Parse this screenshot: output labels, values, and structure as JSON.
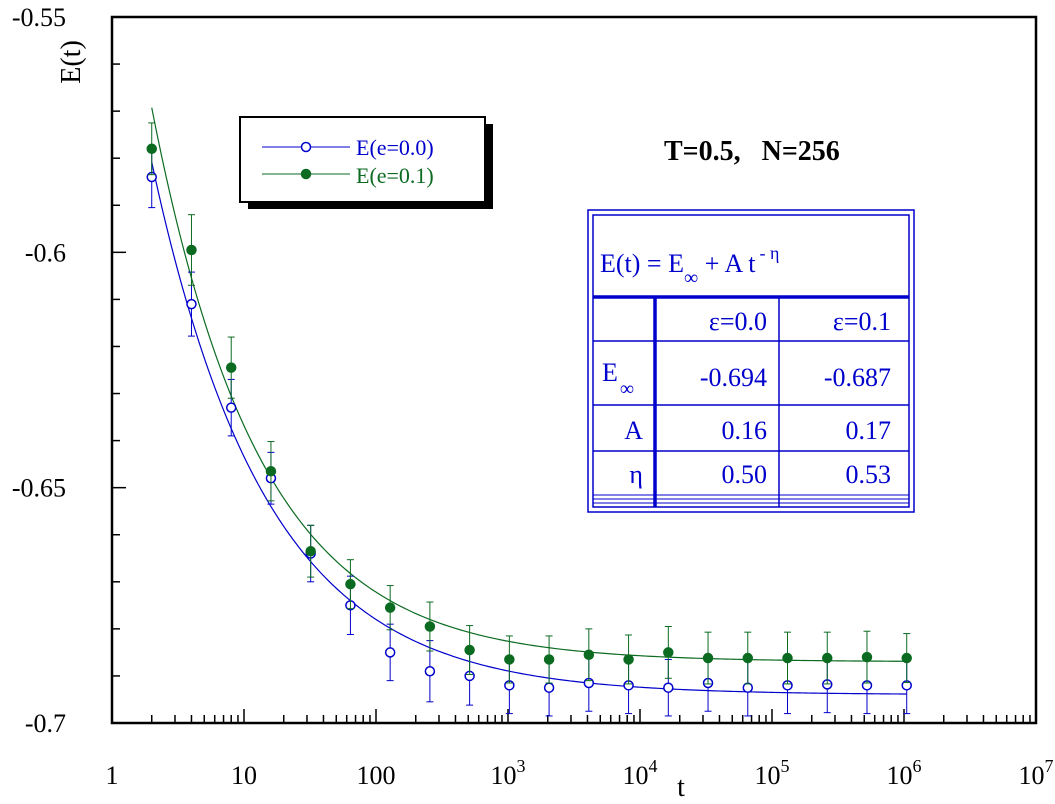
{
  "chart_data": {
    "type": "scatter",
    "title": "T=0.5,   N=256",
    "xlabel": "t",
    "ylabel": "E(t)",
    "xscale": "log",
    "xlim": [
      1,
      10000000
    ],
    "ylim": [
      -0.7,
      -0.55
    ],
    "grid": false,
    "legend_position": "top-left",
    "x_tick_labels": [
      {
        "x": 1,
        "base": "1",
        "exp": ""
      },
      {
        "x": 10,
        "base": "10",
        "exp": ""
      },
      {
        "x": 100,
        "base": "100",
        "exp": ""
      },
      {
        "x": 1000,
        "base": "10",
        "exp": "3"
      },
      {
        "x": 10000,
        "base": "10",
        "exp": "4"
      },
      {
        "x": 100000,
        "base": "10",
        "exp": "5"
      },
      {
        "x": 1000000,
        "base": "10",
        "exp": "6"
      },
      {
        "x": 10000000,
        "base": "10",
        "exp": "7"
      }
    ],
    "y_tick_labels": [
      {
        "y": -0.55,
        "label": "-0.55"
      },
      {
        "y": -0.6,
        "label": "-0.6"
      },
      {
        "y": -0.65,
        "label": "-0.65"
      },
      {
        "y": -0.7,
        "label": "-0.7"
      }
    ],
    "y_minor_step": 0.01,
    "x": [
      2,
      4,
      8,
      16,
      32,
      64,
      128,
      256,
      512,
      1024,
      2048,
      4096,
      8192,
      16384,
      32768,
      65536,
      131072,
      262144,
      524288,
      1048576
    ],
    "series": [
      {
        "name": "E(e=0.0)",
        "color": "#0000cc",
        "marker": "open-circle",
        "values": [
          -0.584,
          -0.611,
          -0.633,
          -0.648,
          -0.664,
          -0.675,
          -0.685,
          -0.689,
          -0.69,
          -0.692,
          -0.6925,
          -0.6915,
          -0.692,
          -0.6925,
          -0.6915,
          -0.6925,
          -0.692,
          -0.6918,
          -0.692,
          -0.692
        ],
        "errors": [
          0.0065,
          0.0068,
          0.006,
          0.0055,
          0.006,
          0.0062,
          0.006,
          0.0065,
          0.0062,
          0.006,
          0.006,
          0.006,
          0.006,
          0.006,
          0.006,
          0.006,
          0.006,
          0.006,
          0.006,
          0.006
        ],
        "fit": {
          "E_inf": -0.694,
          "A": 0.16,
          "eta": 0.5
        }
      },
      {
        "name": "E(e=0.1)",
        "color": "#0b6b21",
        "marker": "filled-circle",
        "values": [
          -0.578,
          -0.5995,
          -0.6245,
          -0.6465,
          -0.6635,
          -0.6705,
          -0.6755,
          -0.6795,
          -0.6845,
          -0.6865,
          -0.6865,
          -0.6855,
          -0.6865,
          -0.685,
          -0.6862,
          -0.6862,
          -0.6862,
          -0.6862,
          -0.686,
          -0.6862
        ],
        "errors": [
          0.0055,
          0.0075,
          0.0065,
          0.0063,
          0.0055,
          0.0052,
          0.0047,
          0.0052,
          0.0052,
          0.005,
          0.005,
          0.0055,
          0.0052,
          0.0055,
          0.0055,
          0.0055,
          0.0055,
          0.0055,
          0.0055,
          0.0052
        ],
        "fit": {
          "E_inf": -0.687,
          "A": 0.17,
          "eta": 0.53
        }
      }
    ],
    "fit_table": {
      "formula": {
        "lhs": "E(t) = E",
        "sub": "∞",
        "rest": " + A t",
        "sup": "- η"
      },
      "header": [
        "",
        "ε=0.0",
        "ε=0.1"
      ],
      "rows": [
        {
          "label": "E",
          "label_sub": "∞",
          "v1": "-0.694",
          "v2": "-0.687"
        },
        {
          "label": "A",
          "label_sub": "",
          "v1": "0.16",
          "v2": "0.17"
        },
        {
          "label": "η",
          "label_sub": "",
          "v1": "0.50",
          "v2": "0.53"
        }
      ],
      "color": "#0000cc"
    }
  }
}
